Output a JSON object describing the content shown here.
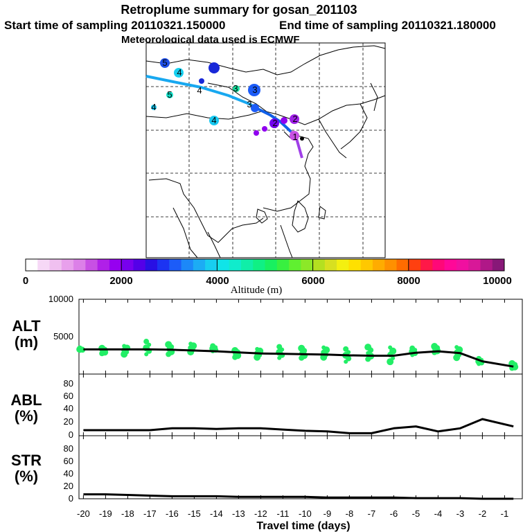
{
  "header": {
    "title": "Retroplume summary for gosan_201103",
    "start_label": "Start time of sampling 20110321.150000",
    "end_label": "End time of sampling 20110321.180000",
    "met_label": "Meteorological data used is ECMWF"
  },
  "colorbar": {
    "title": "Altitude (m)",
    "ticks": [
      "0",
      "2000",
      "4000",
      "6000",
      "8000",
      "10000"
    ],
    "colors": [
      "#ffffff",
      "#f6d8f6",
      "#f0c0f0",
      "#e8a0ec",
      "#dc80e8",
      "#c850e4",
      "#b020e8",
      "#9600f0",
      "#7800ee",
      "#5400e8",
      "#2810e4",
      "#1c34f2",
      "#1c5cf8",
      "#1c88f8",
      "#1cacf4",
      "#18cef0",
      "#10e4e8",
      "#10eccc",
      "#10eea8",
      "#10f084",
      "#18f060",
      "#38f040",
      "#60f030",
      "#8ce828",
      "#b4e020",
      "#d8e020",
      "#f4f010",
      "#ffe000",
      "#ffc800",
      "#ffac00",
      "#ff9000",
      "#ff6c00",
      "#ff4010",
      "#ff1848",
      "#ff0878",
      "#ff0898",
      "#f010a0",
      "#d81898",
      "#b01888",
      "#881878"
    ]
  },
  "map": {
    "age_labels": [
      "5",
      "4",
      "3",
      "2",
      "1"
    ],
    "trajectory_colors": [
      "#18a8f0",
      "#1060e8",
      "#a040e8"
    ]
  },
  "chart_data": {
    "type": "line",
    "x": [
      -20,
      -19,
      -18,
      -17,
      -16,
      -15,
      -14,
      -13,
      -12,
      -11,
      -10,
      -9,
      -8,
      -7,
      -6,
      -5,
      -4,
      -3,
      -2,
      -1
    ],
    "xlim": [
      -20.2,
      -0.2
    ],
    "xticks": [
      "-20",
      "-19",
      "-18",
      "-17",
      "-16",
      "-15",
      "-14",
      "-13",
      "-12",
      "-11",
      "-10",
      "-9",
      "-8",
      "-7",
      "-6",
      "-5",
      "-4",
      "-3",
      "-2",
      "-1"
    ],
    "xlabel": "Travel time (days)",
    "panels": [
      {
        "label_top": "ALT",
        "label_bottom": "(m)",
        "ylim": [
          0,
          10000
        ],
        "yticks": [
          "10000",
          "5000"
        ],
        "line_x": [
          -20,
          -19,
          -18,
          -17,
          -16,
          -15,
          -14,
          -13,
          -12,
          -11,
          -10,
          -9,
          -8,
          -7,
          -6,
          -5,
          -4,
          -3,
          -2,
          -0.6
        ],
        "line_y": [
          3300,
          3300,
          3300,
          3300,
          3250,
          3150,
          3050,
          2900,
          2750,
          2700,
          2650,
          2600,
          2500,
          2450,
          2450,
          2850,
          3050,
          2800,
          1700,
          1000
        ],
        "scatter_x": [
          -20.1,
          -19.1,
          -18.1,
          -17.1,
          -16.1,
          -15.1,
          -14.1,
          -13.1,
          -12.1,
          -11.1,
          -10.1,
          -9.1,
          -8.1,
          -7.1,
          -6.1,
          -5.1,
          -4.1,
          -3.1,
          -2.1,
          -0.6
        ],
        "scatter_y": [
          3300,
          3100,
          3200,
          3500,
          3300,
          3500,
          3400,
          2700,
          2800,
          2900,
          2800,
          2900,
          2500,
          2800,
          2600,
          3000,
          3300,
          2900,
          1700,
          1100
        ],
        "scatter_spread": [
          300,
          700,
          1100,
          1700,
          1300,
          1100,
          700,
          900,
          1100,
          1500,
          1300,
          1300,
          1700,
          1600,
          1900,
          900,
          800,
          1400,
          700,
          600
        ],
        "scatter_color": "#22ee66"
      },
      {
        "label_top": "ABL",
        "label_bottom": "(%)",
        "ylim": [
          0,
          100
        ],
        "yticks": [
          "80",
          "60",
          "40",
          "20",
          "0"
        ],
        "line_x": [
          -20,
          -19,
          -18,
          -17,
          -16,
          -15,
          -14,
          -13,
          -12,
          -11,
          -10,
          -9,
          -8,
          -7,
          -6,
          -5,
          -4,
          -3,
          -2,
          -0.6
        ],
        "line_y": [
          9,
          9,
          9,
          9,
          12,
          12,
          11,
          12,
          12,
          10,
          8,
          7,
          4,
          4,
          12,
          15,
          7,
          12,
          27,
          15
        ]
      },
      {
        "label_top": "STR",
        "label_bottom": "(%)",
        "ylim": [
          0,
          100
        ],
        "yticks": [
          "80",
          "60",
          "40",
          "20",
          "0"
        ],
        "line_x": [
          -20,
          -19,
          -18,
          -17,
          -16,
          -15,
          -14,
          -13,
          -12,
          -11,
          -10,
          -9,
          -8,
          -7,
          -6,
          -5,
          -4,
          -3,
          -2,
          -0.6
        ],
        "line_y": [
          7,
          7,
          6,
          5,
          4,
          4,
          4,
          3,
          3,
          3,
          3,
          2,
          2,
          2,
          2,
          1,
          1,
          1,
          0,
          0
        ]
      }
    ]
  }
}
